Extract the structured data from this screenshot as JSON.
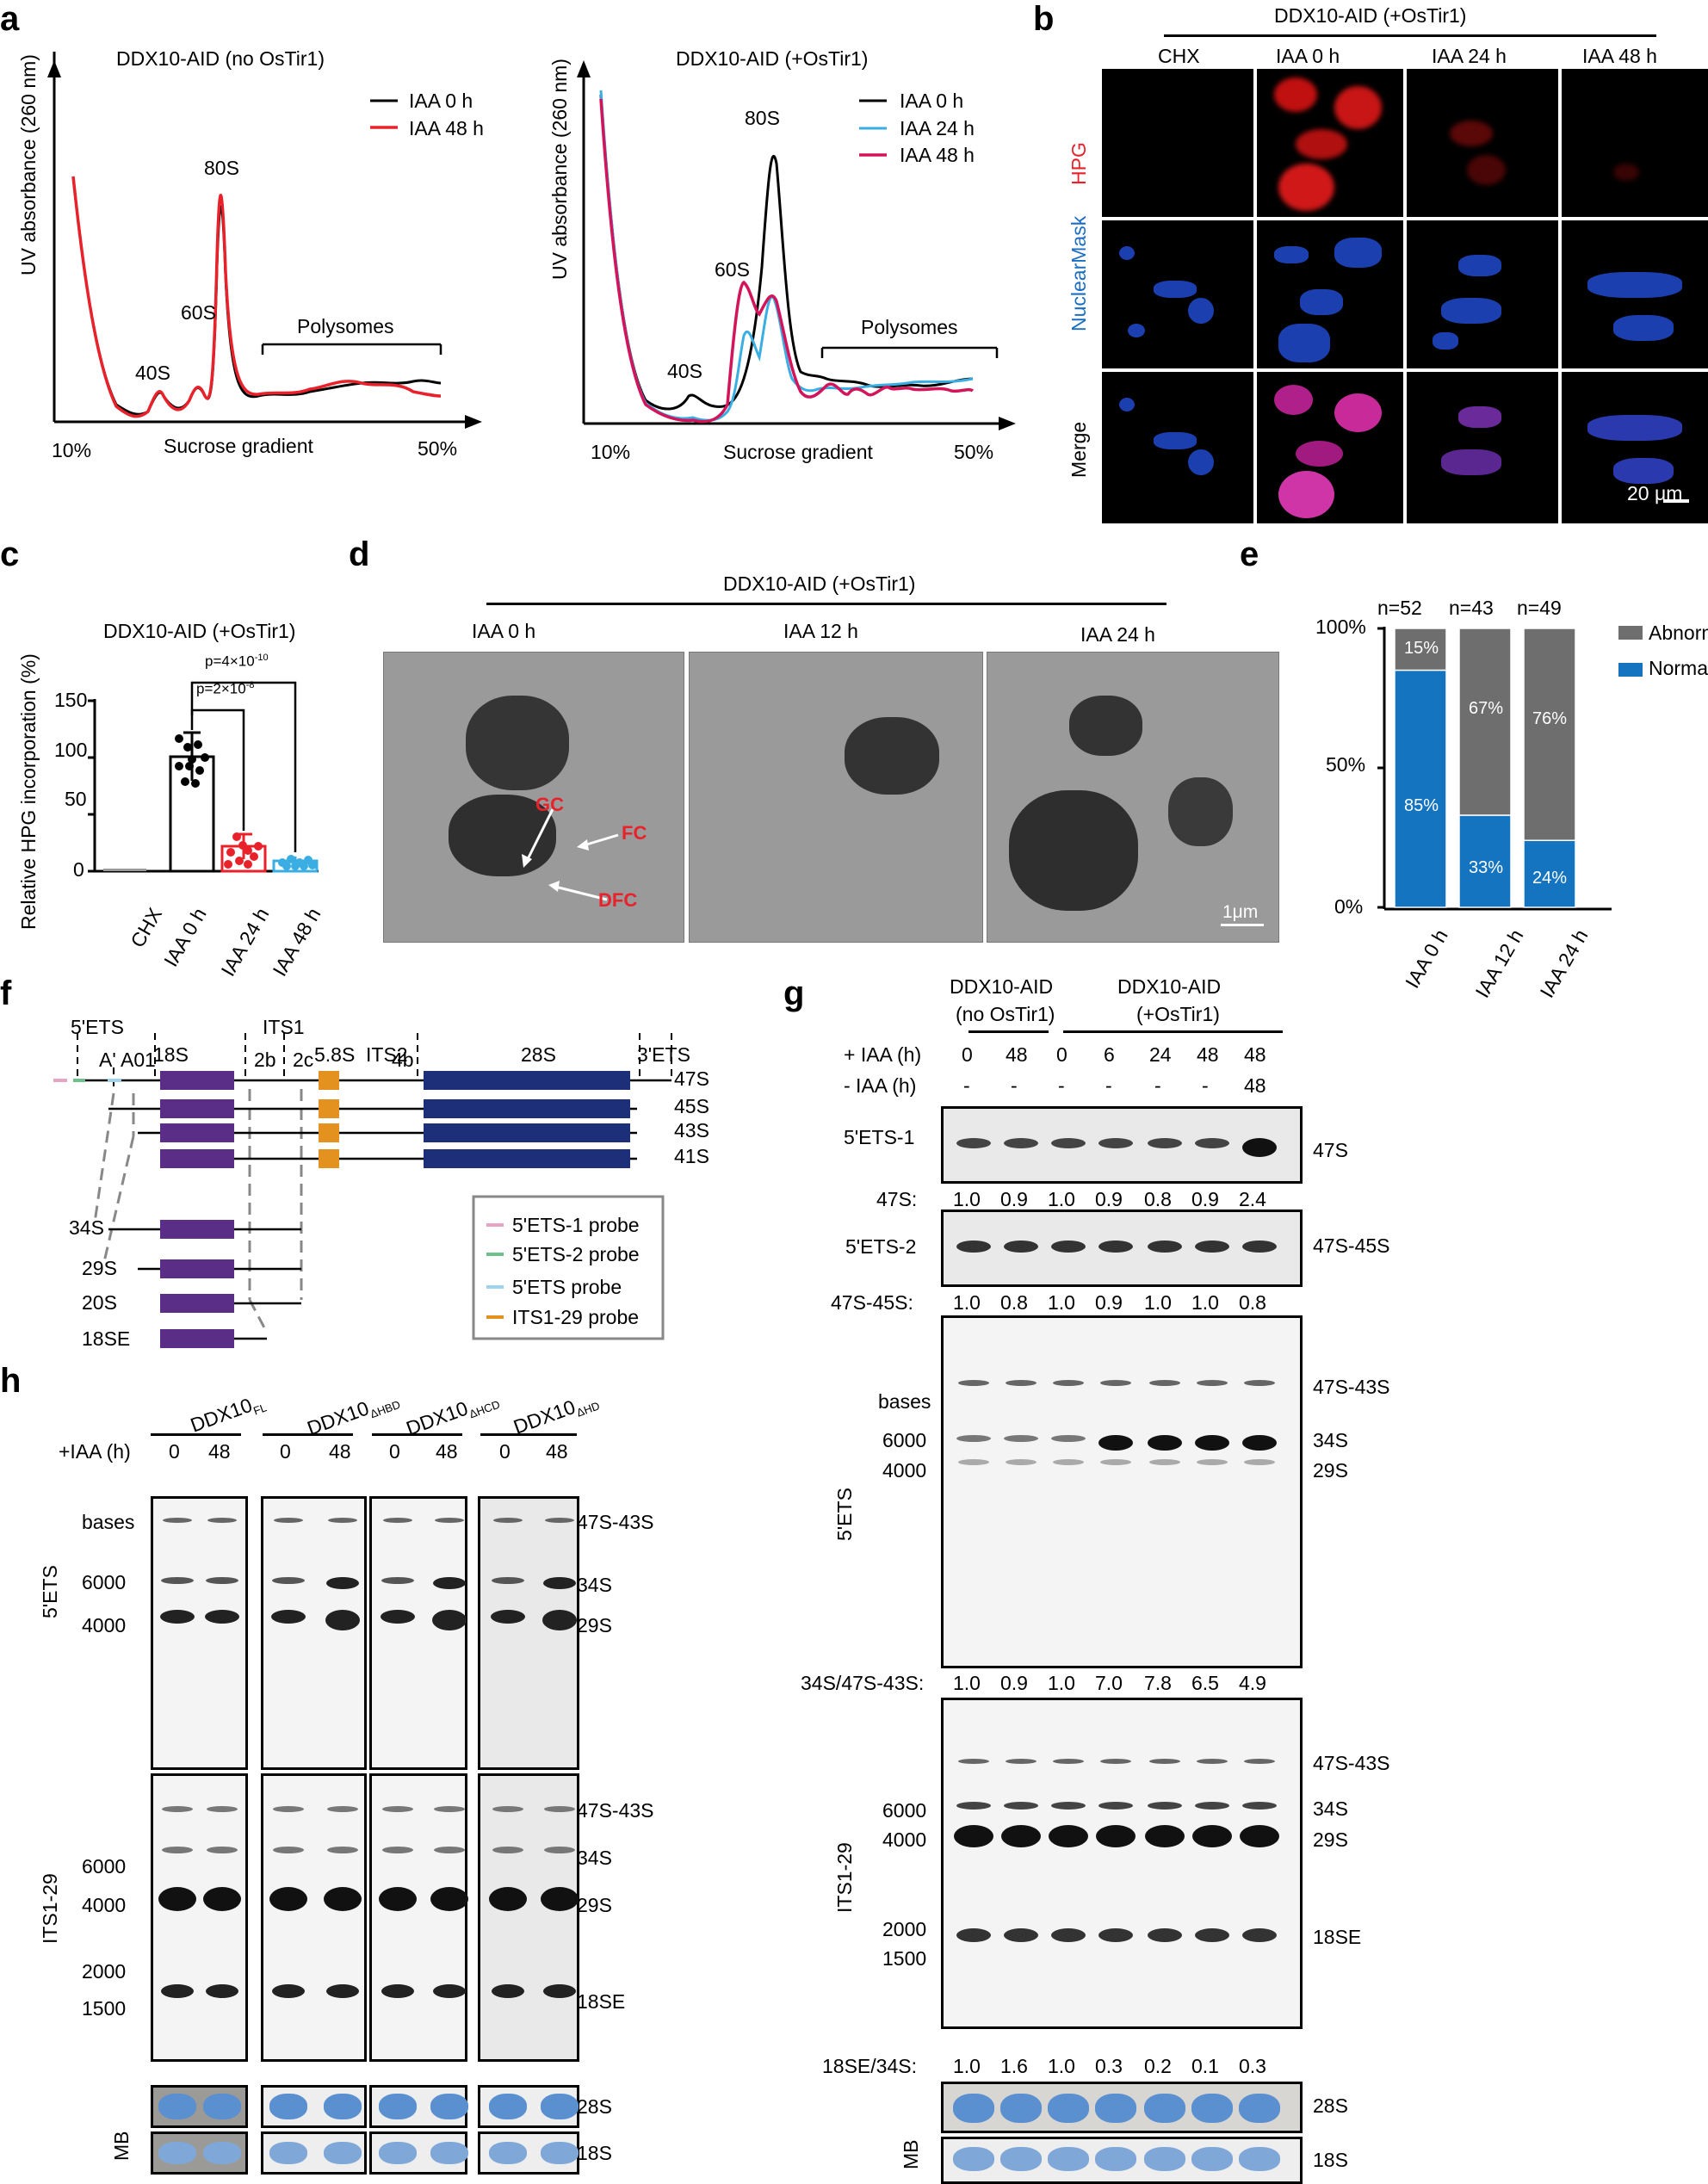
{
  "panel_labels": {
    "a": "a",
    "b": "b",
    "c": "c",
    "d": "d",
    "e": "e",
    "f": "f",
    "g": "g",
    "h": "h"
  },
  "a": {
    "left": {
      "title": "DDX10-AID (no OsTir1)",
      "ylabel": "UV absorbance (260 nm)",
      "xlabel": "Sucrose gradient",
      "x_start": "10%",
      "x_end": "50%",
      "legend": [
        "IAA 0 h",
        "IAA 48 h"
      ],
      "peaks": {
        "p40": "40S",
        "p60": "60S",
        "p80": "80S"
      },
      "polysomes": "Polysomes"
    },
    "right": {
      "title": "DDX10-AID (+OsTir1)",
      "ylabel": "UV absorbance (260 nm)",
      "xlabel": "Sucrose gradient",
      "x_start": "10%",
      "x_end": "50%",
      "legend": [
        "IAA 0 h",
        "IAA 24 h",
        "IAA 48 h"
      ],
      "peaks": {
        "p40": "40S",
        "p60": "60S",
        "p80": "80S"
      },
      "polysomes": "Polysomes"
    },
    "colors": {
      "black": "#000000",
      "red": "#e8212a",
      "blue": "#3aaee3",
      "crimson": "#d4145a"
    }
  },
  "b": {
    "title": "DDX10-AID (+OsTir1)",
    "columns": [
      "CHX",
      "IAA 0 h",
      "IAA 24 h",
      "IAA 48 h"
    ],
    "rows": [
      "HPG",
      "NuclearMask",
      "Merge"
    ],
    "scale": "20 μm"
  },
  "c": {
    "title": "DDX10-AID (+OsTir1)",
    "ylabel": "Relative HPG incorporation (%)",
    "yticks": [
      "0",
      "50",
      "100",
      "150"
    ],
    "categories": [
      "CHX",
      "IAA 0 h",
      "IAA 24 h",
      "IAA 48 h"
    ],
    "p1": "p=2×10",
    "p1_exp": "-8",
    "p2": "p=4×10",
    "p2_exp": "-10"
  },
  "d": {
    "title": "DDX10-AID (+OsTir1)",
    "columns": [
      "IAA 0 h",
      "IAA 12 h",
      "IAA 24 h"
    ],
    "labels": {
      "gc": "GC",
      "fc": "FC",
      "dfc": "DFC"
    },
    "scale": "1μm"
  },
  "e": {
    "yticks": [
      "100%",
      "50%",
      "0%"
    ],
    "categories": [
      "IAA 0 h",
      "IAA 12 h",
      "IAA 24 h"
    ],
    "n": [
      "n=52",
      "n=43",
      "n=49"
    ],
    "legend": [
      "Abnormal",
      "Normal"
    ],
    "abnormal": [
      "15%",
      "67%",
      "76%"
    ],
    "normal": [
      "85%",
      "33%",
      "24%"
    ]
  },
  "f": {
    "regions": {
      "ets5": "5'ETS",
      "s18": "18S",
      "its1": "ITS1",
      "s58": "5.8S",
      "its2": "ITS2",
      "s28": "28S",
      "ets3": "3'ETS"
    },
    "sites": {
      "a": "A'",
      "a0": "A0",
      "s1": "1",
      "s2b": "2b",
      "s2c": "2c",
      "s4b": "4b"
    },
    "precursors": [
      "47S",
      "45S",
      "43S",
      "41S",
      "34S",
      "29S",
      "20S",
      "18SE"
    ],
    "legend": [
      "5'ETS-1 probe",
      "5'ETS-2 probe",
      "5'ETS probe",
      "ITS1-29 probe"
    ]
  },
  "g": {
    "group1": "DDX10-AID",
    "group1b": "(no OsTir1)",
    "group2": "DDX10-AID",
    "group2b": "(+OsTir1)",
    "plus_iaa_label": "+ IAA (h)",
    "minus_iaa_label": "- IAA (h)",
    "plus_iaa": [
      "0",
      "48",
      "0",
      "6",
      "24",
      "48",
      "48"
    ],
    "minus_iaa": [
      "-",
      "-",
      "-",
      "-",
      "-",
      "-",
      "48"
    ],
    "blot1": {
      "probe": "5'ETS-1",
      "band": "47S",
      "ratio_label": "47S:",
      "ratios": [
        "1.0",
        "0.9",
        "1.0",
        "0.9",
        "0.8",
        "0.9",
        "2.4"
      ]
    },
    "blot2": {
      "probe": "5'ETS-2",
      "band": "47S-45S",
      "ratio_label": "47S-45S:",
      "ratios": [
        "1.0",
        "0.8",
        "1.0",
        "0.9",
        "1.0",
        "1.0",
        "0.8"
      ]
    },
    "blot3": {
      "probe": "5'ETS",
      "bases": "bases",
      "m1": "6000",
      "m2": "4000",
      "bands": [
        "47S-43S",
        "34S",
        "29S"
      ],
      "ratio_label": "34S/47S-43S:",
      "ratios": [
        "1.0",
        "0.9",
        "1.0",
        "7.0",
        "7.8",
        "6.5",
        "4.9"
      ]
    },
    "blot4": {
      "probe": "ITS1-29",
      "m1": "6000",
      "m2": "4000",
      "m3": "2000",
      "m4": "1500",
      "bands": [
        "47S-43S",
        "34S",
        "29S",
        "18SE"
      ],
      "ratio_label": "18SE/34S:",
      "ratios": [
        "1.0",
        "1.6",
        "1.0",
        "0.3",
        "0.2",
        "0.1",
        "0.3"
      ]
    },
    "mb": {
      "label": "MB",
      "bands": [
        "28S",
        "18S"
      ]
    }
  },
  "h": {
    "constructs": [
      "DDX10",
      "DDX10",
      "DDX10",
      "DDX10"
    ],
    "subs": [
      "FL",
      "ΔHBD",
      "ΔHCD",
      "ΔHD"
    ],
    "iaa_label": "+IAA (h)",
    "lanes": [
      "0",
      "48"
    ],
    "blot1": {
      "probe": "5'ETS",
      "bases": "bases",
      "m1": "6000",
      "m2": "4000",
      "bands": [
        "47S-43S",
        "34S",
        "29S"
      ]
    },
    "blot2": {
      "probe": "ITS1-29",
      "m1": "6000",
      "m2": "4000",
      "m3": "2000",
      "m4": "1500",
      "bands": [
        "47S-43S",
        "34S",
        "29S",
        "18SE"
      ]
    },
    "mb": {
      "label": "MB",
      "bands": [
        "28S",
        "18S"
      ]
    }
  }
}
